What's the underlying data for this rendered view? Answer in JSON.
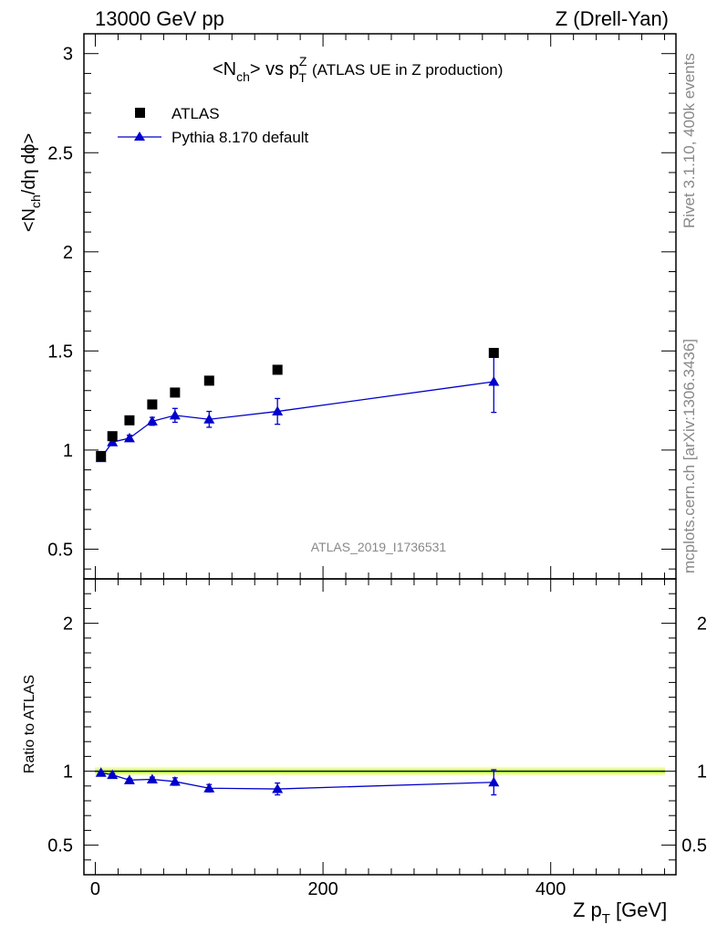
{
  "header": {
    "left": "13000 GeV pp",
    "right": "Z (Drell-Yan)"
  },
  "side_labels": {
    "rivet": "Rivet 3.1.10,  400k events",
    "mcplots": "mcplots.cern.ch [arXiv:1306.3436]"
  },
  "chart_data": [
    {
      "type": "scatter",
      "title": "<N_ch> vs p_T^Z (ATLAS UE in Z production)",
      "title_parts": {
        "lhs": "<N",
        "lhs_sub": "ch",
        "mid": "> vs p",
        "sub": "T",
        "sup": "Z",
        "rest": "(ATLAS UE in Z production)"
      },
      "ylabel_parts": {
        "a": "<N",
        "sub": "ch",
        "b": "/dη dϕ>"
      },
      "xlabel_parts": {
        "a": "Z p",
        "sub": "T",
        "b": "[GeV]"
      },
      "watermark": "ATLAS_2019_I1736531",
      "xlim": [
        -10,
        510
      ],
      "ylim": [
        0.35,
        3.1
      ],
      "x_ticks": [
        0,
        200,
        400
      ],
      "x_tick_labels": [
        "0",
        "200",
        "400"
      ],
      "y_ticks": [
        0.5,
        1,
        1.5,
        2,
        2.5,
        3
      ],
      "y_tick_labels": [
        "0.5",
        "1",
        "1.5",
        "2",
        "2.5",
        "3"
      ],
      "legend_position": "top-left",
      "series": [
        {
          "name": "ATLAS",
          "color": "#000000",
          "marker": "square",
          "x": [
            5,
            15,
            30,
            50,
            70,
            100,
            160,
            350
          ],
          "y": [
            0.97,
            1.07,
            1.15,
            1.23,
            1.29,
            1.35,
            1.405,
            1.49
          ]
        },
        {
          "name": "Pythia 8.170 default",
          "color": "#0000cc",
          "marker": "triangle",
          "x": [
            5,
            15,
            30,
            50,
            70,
            100,
            160,
            350
          ],
          "y": [
            0.96,
            1.04,
            1.06,
            1.145,
            1.175,
            1.155,
            1.195,
            1.345
          ],
          "yerr": [
            0.01,
            0.015,
            0.015,
            0.02,
            0.035,
            0.04,
            0.065,
            0.155
          ]
        }
      ]
    },
    {
      "type": "scatter",
      "ylabel": "Ratio to ATLAS",
      "xlim": [
        -10,
        510
      ],
      "ylim": [
        0.3,
        2.3
      ],
      "x_ticks": [
        0,
        200,
        400
      ],
      "x_tick_labels": [
        "0",
        "200",
        "400"
      ],
      "y_ticks": [
        0.5,
        1,
        2
      ],
      "y_tick_labels": [
        "0.5",
        "1",
        "2"
      ],
      "band": {
        "inner": [
          0.985,
          1.015
        ],
        "outer": [
          0.97,
          1.03
        ],
        "inner_color": "#ccff66",
        "outer_color": "#f5ffb0"
      },
      "series": [
        {
          "name": "Pythia 8.170 default",
          "color": "#0000cc",
          "marker": "triangle",
          "x": [
            5,
            15,
            30,
            50,
            70,
            100,
            160,
            350
          ],
          "y": [
            0.99,
            0.975,
            0.94,
            0.945,
            0.93,
            0.885,
            0.88,
            0.925
          ],
          "yerr": [
            0.01,
            0.01,
            0.01,
            0.015,
            0.025,
            0.025,
            0.04,
            0.085
          ]
        }
      ]
    }
  ]
}
